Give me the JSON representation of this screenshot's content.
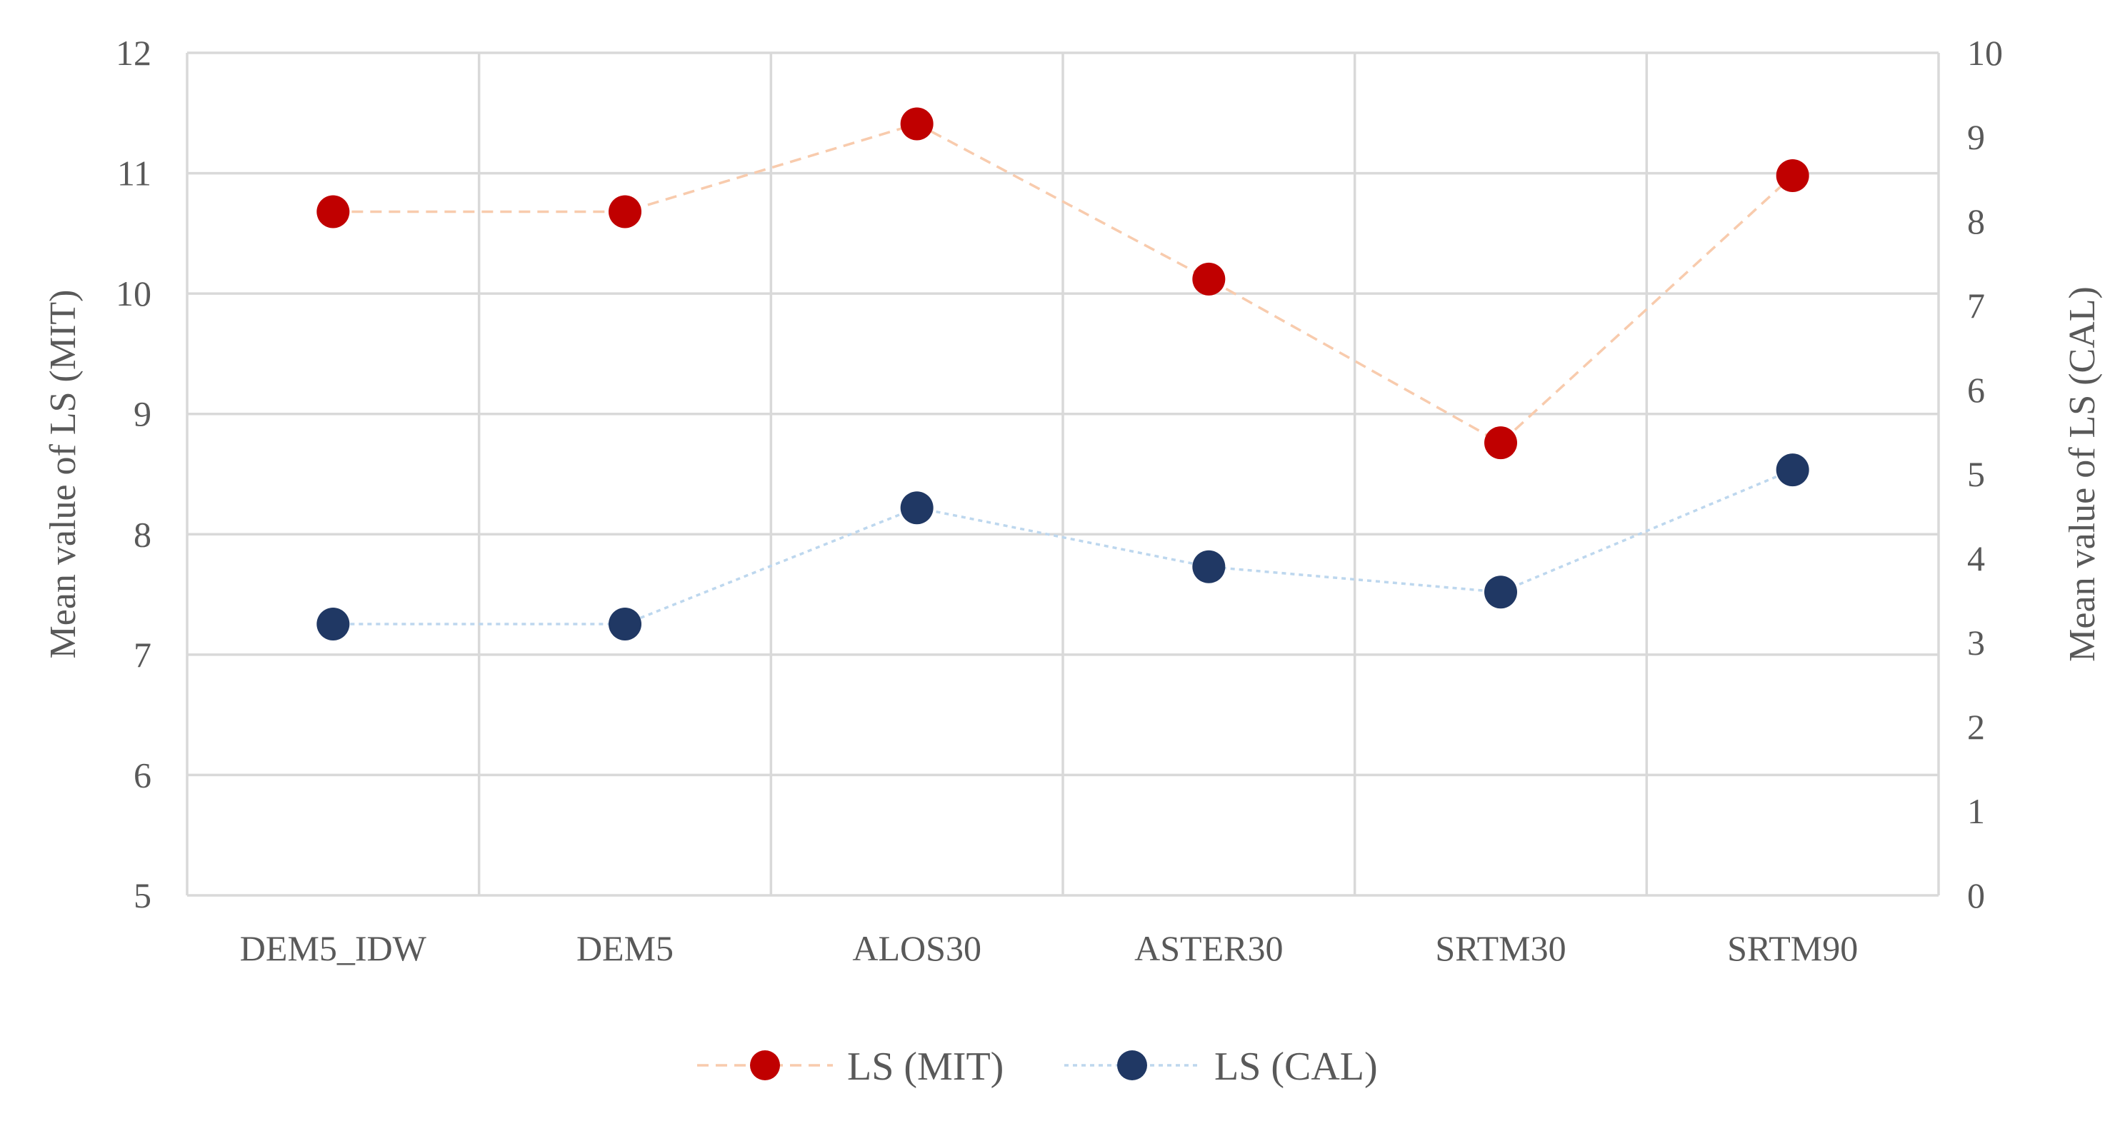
{
  "chart_data": {
    "type": "line",
    "categories": [
      "DEM5_IDW",
      "DEM5",
      "ALOS30",
      "ASTER30",
      "SRTM30",
      "SRTM90"
    ],
    "series": [
      {
        "name": "LS (MIT)",
        "axis": "left",
        "values": [
          10.68,
          10.68,
          11.41,
          10.12,
          8.76,
          10.98
        ],
        "marker_color": "#c00000",
        "line_color": "#f8cbad",
        "line_style": "dashed"
      },
      {
        "name": "LS (CAL)",
        "axis": "right",
        "values": [
          3.22,
          3.22,
          4.6,
          3.9,
          3.6,
          5.05
        ],
        "marker_color": "#203864",
        "line_color": "#bdd7ee",
        "line_style": "dotted"
      }
    ],
    "ylabel": "Mean value of LS (MIT)",
    "y2label": "Mean value of LS (CAL)",
    "ylim": [
      5,
      12
    ],
    "y2lim": [
      0,
      10
    ],
    "yticks": [
      "5",
      "6",
      "7",
      "8",
      "9",
      "10",
      "11",
      "12"
    ],
    "y2ticks": [
      "0",
      "1",
      "2",
      "3",
      "4",
      "5",
      "6",
      "7",
      "8",
      "9",
      "10"
    ],
    "grid": true,
    "legend_position": "bottom"
  }
}
